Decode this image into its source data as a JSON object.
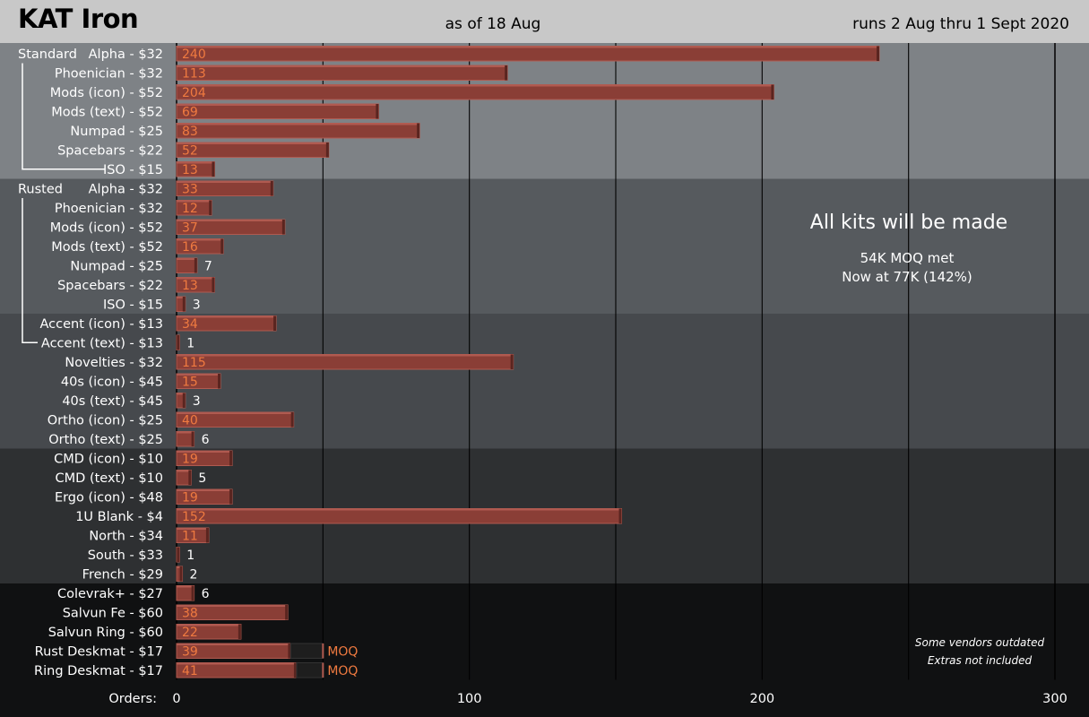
{
  "header": {
    "title": "KAT Iron",
    "as_of": "as of 18 Aug",
    "runs": "runs 2 Aug thru 1 Sept 2020"
  },
  "chart_data": {
    "type": "bar",
    "orientation": "horizontal",
    "title": "KAT Iron",
    "xlabel": "Orders:",
    "xlim": [
      0,
      300
    ],
    "xticks": [
      0,
      100,
      200,
      300
    ],
    "group_labels": [
      "Standard",
      "Rusted"
    ],
    "categories": [
      "Alpha - $32",
      "Phoenician - $32",
      "Mods (icon) - $52",
      "Mods (text) - $52",
      "Numpad - $25",
      "Spacebars - $22",
      "ISO - $15",
      "Alpha - $32",
      "Phoenician - $32",
      "Mods (icon) - $52",
      "Mods (text) - $52",
      "Numpad - $25",
      "Spacebars - $22",
      "ISO - $15",
      "Accent (icon) - $13",
      "Accent (text) - $13",
      "Novelties - $32",
      "40s (icon) - $45",
      "40s (text) - $45",
      "Ortho (icon) - $25",
      "Ortho (text) - $25",
      "CMD (icon) - $10",
      "CMD (text) - $10",
      "Ergo (icon) - $48",
      "1U Blank - $4",
      "North - $34",
      "South - $33",
      "French - $29",
      "Colevrak+ - $27",
      "Salvun Fe - $60",
      "Salvun Ring  - $60",
      "Rust Deskmat - $17",
      "Ring Deskmat - $17"
    ],
    "values": [
      240,
      113,
      204,
      69,
      83,
      52,
      13,
      33,
      12,
      37,
      16,
      7,
      13,
      3,
      34,
      1,
      115,
      15,
      3,
      40,
      6,
      19,
      5,
      19,
      152,
      11,
      1,
      2,
      6,
      38,
      22,
      39,
      41
    ],
    "moq_targets": [
      {
        "category_index": 31,
        "value": 50,
        "label": "MOQ"
      },
      {
        "category_index": 32,
        "value": 50,
        "label": "MOQ"
      }
    ],
    "annotations": {
      "headline": "All kits will be made",
      "moq_line1": "54K MOQ met",
      "moq_line2": "Now at 77K (142%)",
      "note1": "Some vendors outdated",
      "note2": "Extras not included"
    },
    "colors": {
      "bar": "#8a3e36",
      "bar_highlight": "#b05a50",
      "value_in_bar": "#ef7a40",
      "value_outside": "#ffffff",
      "moq_text": "#ef7a40",
      "bands": [
        "#7e8286",
        "#565a5e",
        "#46494d",
        "#2e3032",
        "#101112"
      ],
      "frame": "#000000"
    }
  }
}
